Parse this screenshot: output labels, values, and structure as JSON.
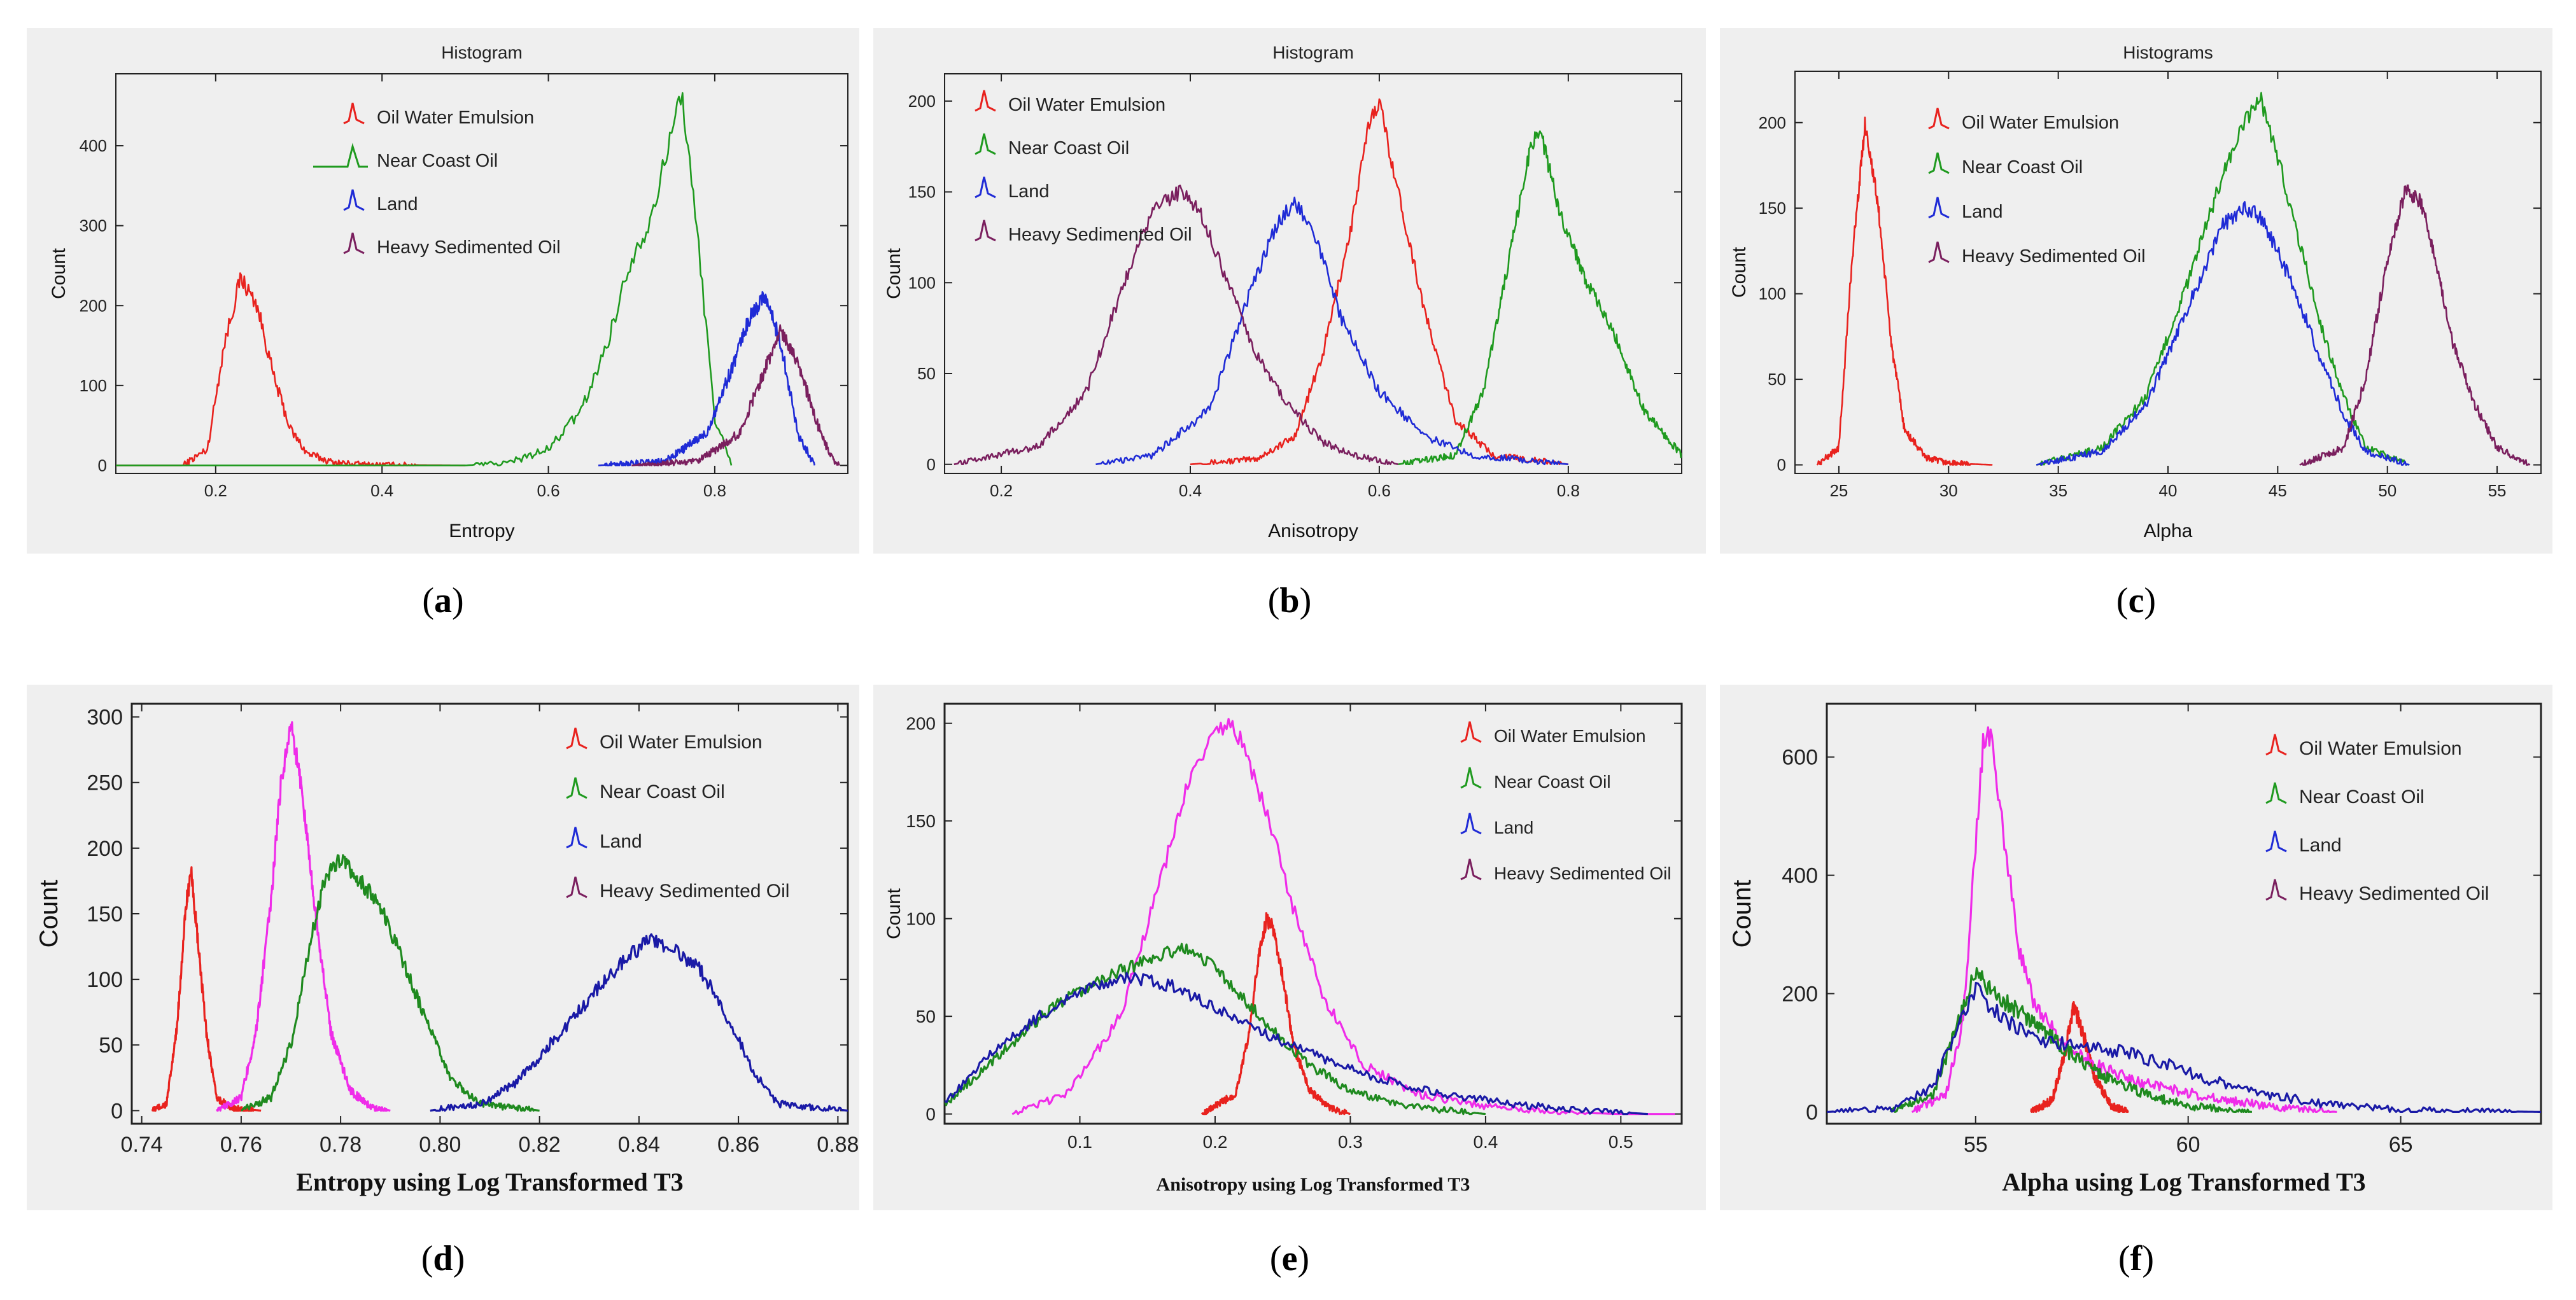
{
  "colors": {
    "oil_water": "#e8221e",
    "near_coast": "#1f9a1f",
    "land": "#1f2bd6",
    "heavy": "#7a1f5e",
    "magenta": "#ef2ce9",
    "darkblue": "#1a1aa6",
    "darkgreen": "#1f8a1f"
  },
  "legend_labels": [
    "Oil Water Emulsion",
    "Near Coast Oil",
    "Land",
    "Heavy Sedimented Oil"
  ],
  "chart_data": [
    {
      "id": "a",
      "type": "line",
      "sublabel": "a",
      "title": "Histogram",
      "xlabel": "Entropy",
      "ylabel": "Count",
      "xlim": [
        0.08,
        0.96
      ],
      "ylim": [
        -10,
        490
      ],
      "xticks": [
        0.2,
        0.4,
        0.6,
        0.8
      ],
      "xtick_labels": [
        "0.2",
        "0.4",
        "0.6",
        "0.8"
      ],
      "yticks": [
        0,
        100,
        200,
        300,
        400
      ],
      "ytick_labels": [
        "0",
        "100",
        "200",
        "300",
        "400"
      ],
      "series": [
        {
          "name": "Oil Water Emulsion",
          "color": "#e8221e",
          "x": [
            0.08,
            0.16,
            0.19,
            0.21,
            0.23,
            0.25,
            0.27,
            0.29,
            0.31,
            0.34,
            0.38,
            0.5
          ],
          "y": [
            0,
            0,
            20,
            150,
            235,
            200,
            110,
            45,
            15,
            4,
            1,
            0
          ]
        },
        {
          "name": "Near Coast Oil",
          "color": "#1f9a1f",
          "x": [
            0.08,
            0.5,
            0.55,
            0.6,
            0.64,
            0.67,
            0.7,
            0.72,
            0.74,
            0.76,
            0.78,
            0.8,
            0.82
          ],
          "y": [
            0,
            0,
            3,
            20,
            70,
            150,
            260,
            300,
            380,
            470,
            280,
            60,
            0
          ]
        },
        {
          "name": "Land",
          "color": "#1f2bd6",
          "x": [
            0.66,
            0.74,
            0.79,
            0.82,
            0.84,
            0.86,
            0.88,
            0.9,
            0.92
          ],
          "y": [
            0,
            5,
            40,
            120,
            180,
            215,
            150,
            40,
            0
          ]
        },
        {
          "name": "Heavy Sedimented Oil",
          "color": "#7a1f5e",
          "x": [
            0.7,
            0.78,
            0.83,
            0.86,
            0.88,
            0.9,
            0.92,
            0.94,
            0.95
          ],
          "y": [
            0,
            5,
            40,
            120,
            170,
            130,
            60,
            10,
            0
          ]
        }
      ]
    },
    {
      "id": "b",
      "type": "line",
      "sublabel": "b",
      "title": "Histogram",
      "xlabel": "Anisotropy",
      "ylabel": "Count",
      "xlim": [
        0.14,
        0.92
      ],
      "ylim": [
        -5,
        215
      ],
      "xticks": [
        0.2,
        0.4,
        0.6,
        0.8
      ],
      "xtick_labels": [
        "0.2",
        "0.4",
        "0.6",
        "0.8"
      ],
      "yticks": [
        0,
        50,
        100,
        150,
        200
      ],
      "ytick_labels": [
        "0",
        "50",
        "100",
        "150",
        "200"
      ],
      "series": [
        {
          "name": "Oil Water Emulsion",
          "color": "#e8221e",
          "x": [
            0.4,
            0.47,
            0.51,
            0.54,
            0.57,
            0.59,
            0.6,
            0.62,
            0.65,
            0.68,
            0.72,
            0.8
          ],
          "y": [
            0,
            3,
            15,
            60,
            130,
            190,
            200,
            150,
            80,
            25,
            5,
            0
          ]
        },
        {
          "name": "Near Coast Oil",
          "color": "#1f9a1f",
          "x": [
            0.62,
            0.68,
            0.71,
            0.74,
            0.76,
            0.77,
            0.79,
            0.82,
            0.85,
            0.88,
            0.92
          ],
          "y": [
            0,
            5,
            40,
            120,
            175,
            185,
            140,
            100,
            70,
            30,
            5
          ]
        },
        {
          "name": "Land",
          "color": "#1f2bd6",
          "x": [
            0.3,
            0.36,
            0.42,
            0.46,
            0.49,
            0.51,
            0.53,
            0.56,
            0.6,
            0.65,
            0.7,
            0.8
          ],
          "y": [
            0,
            5,
            30,
            90,
            130,
            145,
            130,
            80,
            40,
            15,
            5,
            0
          ]
        },
        {
          "name": "Heavy Sedimented Oil",
          "color": "#7a1f5e",
          "x": [
            0.15,
            0.24,
            0.29,
            0.33,
            0.36,
            0.39,
            0.41,
            0.44,
            0.47,
            0.5,
            0.54,
            0.58,
            0.62
          ],
          "y": [
            0,
            10,
            40,
            100,
            140,
            150,
            140,
            100,
            60,
            35,
            12,
            4,
            0
          ]
        }
      ]
    },
    {
      "id": "c",
      "type": "line",
      "sublabel": "c",
      "title": "Histograms",
      "xlabel": "Alpha",
      "ylabel": "Count",
      "xlim": [
        23,
        57
      ],
      "ylim": [
        -5,
        230
      ],
      "xticks": [
        25,
        30,
        35,
        40,
        45,
        50,
        55
      ],
      "xtick_labels": [
        "25",
        "30",
        "35",
        "40",
        "45",
        "50",
        "55"
      ],
      "yticks": [
        0,
        50,
        100,
        150,
        200
      ],
      "ytick_labels": [
        "0",
        "50",
        "100",
        "150",
        "200"
      ],
      "series": [
        {
          "name": "Oil Water Emulsion",
          "color": "#e8221e",
          "x": [
            24,
            25,
            25.6,
            26.2,
            26.8,
            27.4,
            28,
            29,
            30,
            32
          ],
          "y": [
            0,
            10,
            120,
            200,
            150,
            70,
            20,
            4,
            1,
            0
          ]
        },
        {
          "name": "Near Coast Oil",
          "color": "#1f9a1f",
          "x": [
            34,
            37,
            39,
            41,
            42.5,
            43.5,
            44.2,
            45,
            46,
            47,
            48,
            49,
            51
          ],
          "y": [
            0,
            10,
            40,
            110,
            170,
            200,
            215,
            180,
            130,
            80,
            40,
            10,
            0
          ]
        },
        {
          "name": "Land",
          "color": "#1f2bd6",
          "x": [
            34,
            37,
            39,
            41,
            42.5,
            43.5,
            44.2,
            45,
            46,
            47,
            48,
            49,
            51
          ],
          "y": [
            0,
            8,
            35,
            95,
            140,
            150,
            145,
            125,
            95,
            60,
            30,
            8,
            0
          ]
        },
        {
          "name": "Heavy Sedimented Oil",
          "color": "#7a1f5e",
          "x": [
            46,
            48,
            49,
            50,
            50.8,
            51.5,
            52.2,
            53,
            54,
            55,
            56.5
          ],
          "y": [
            0,
            10,
            50,
            120,
            160,
            155,
            120,
            70,
            35,
            10,
            0
          ]
        }
      ]
    },
    {
      "id": "d",
      "type": "line",
      "sublabel": "d",
      "title": "",
      "xlabel": "Entropy using Log Transformed T3",
      "ylabel": "Count",
      "xlim": [
        0.738,
        0.882
      ],
      "ylim": [
        -10,
        310
      ],
      "xticks": [
        0.74,
        0.76,
        0.78,
        0.8,
        0.82,
        0.84,
        0.86,
        0.88
      ],
      "xtick_labels": [
        "0.74",
        "0.76",
        "0.78",
        "0.80",
        "0.82",
        "0.84",
        "0.86",
        "0.88"
      ],
      "yticks": [
        0,
        50,
        100,
        150,
        200,
        250,
        300
      ],
      "ytick_labels": [
        "0",
        "50",
        "100",
        "150",
        "200",
        "250",
        "300"
      ],
      "series": [
        {
          "name": "",
          "color": "#e8221e",
          "x": [
            0.742,
            0.745,
            0.747,
            0.749,
            0.75,
            0.751,
            0.753,
            0.755,
            0.758,
            0.764
          ],
          "y": [
            0,
            5,
            60,
            160,
            180,
            140,
            60,
            10,
            2,
            0
          ]
        },
        {
          "name": "",
          "color": "#ef2ce9",
          "x": [
            0.755,
            0.76,
            0.763,
            0.766,
            0.768,
            0.77,
            0.772,
            0.775,
            0.778,
            0.782,
            0.786,
            0.79
          ],
          "y": [
            0,
            10,
            60,
            160,
            250,
            295,
            250,
            150,
            60,
            15,
            3,
            0
          ]
        },
        {
          "name": "",
          "color": "#1f8a1f",
          "x": [
            0.76,
            0.766,
            0.77,
            0.774,
            0.777,
            0.78,
            0.784,
            0.788,
            0.793,
            0.797,
            0.802,
            0.808,
            0.82
          ],
          "y": [
            0,
            10,
            50,
            130,
            180,
            190,
            175,
            155,
            110,
            70,
            25,
            5,
            0
          ]
        },
        {
          "name": "",
          "color": "#1a1aa6",
          "x": [
            0.798,
            0.808,
            0.815,
            0.822,
            0.83,
            0.837,
            0.842,
            0.846,
            0.852,
            0.858,
            0.863,
            0.868,
            0.882
          ],
          "y": [
            0,
            5,
            20,
            50,
            85,
            115,
            130,
            125,
            110,
            70,
            30,
            5,
            0
          ]
        }
      ]
    },
    {
      "id": "e",
      "type": "line",
      "sublabel": "e",
      "title": "",
      "xlabel": "Anisotropy using Log Transformed T3",
      "ylabel": "Count",
      "xlim": [
        0,
        0.545
      ],
      "ylim": [
        -5,
        210
      ],
      "xticks": [
        0.1,
        0.2,
        0.3,
        0.4,
        0.5
      ],
      "xtick_labels": [
        "0.1",
        "0.2",
        "0.3",
        "0.4",
        "0.5"
      ],
      "yticks": [
        0,
        50,
        100,
        150,
        200
      ],
      "ytick_labels": [
        "0",
        "50",
        "100",
        "150",
        "200"
      ],
      "series": [
        {
          "name": "",
          "color": "#e8221e",
          "x": [
            0.19,
            0.215,
            0.225,
            0.232,
            0.238,
            0.243,
            0.25,
            0.258,
            0.27,
            0.285,
            0.3
          ],
          "y": [
            0,
            10,
            40,
            80,
            100,
            95,
            70,
            35,
            12,
            3,
            0
          ]
        },
        {
          "name": "",
          "color": "#ef2ce9",
          "x": [
            0.05,
            0.09,
            0.13,
            0.16,
            0.18,
            0.2,
            0.21,
            0.22,
            0.24,
            0.26,
            0.28,
            0.31,
            0.35,
            0.4,
            0.45,
            0.5,
            0.54
          ],
          "y": [
            0,
            10,
            50,
            120,
            170,
            195,
            200,
            190,
            150,
            100,
            60,
            25,
            10,
            4,
            1,
            0,
            0
          ]
        },
        {
          "name": "",
          "color": "#1f8a1f",
          "x": [
            0,
            0.04,
            0.08,
            0.12,
            0.16,
            0.18,
            0.2,
            0.22,
            0.24,
            0.27,
            0.3,
            0.34,
            0.4
          ],
          "y": [
            5,
            30,
            55,
            70,
            82,
            85,
            75,
            60,
            45,
            25,
            12,
            4,
            0
          ]
        },
        {
          "name": "",
          "color": "#1a1aa6",
          "x": [
            0,
            0.04,
            0.08,
            0.11,
            0.14,
            0.17,
            0.2,
            0.24,
            0.28,
            0.32,
            0.37,
            0.42,
            0.47,
            0.52
          ],
          "y": [
            5,
            35,
            55,
            65,
            70,
            65,
            55,
            40,
            28,
            18,
            10,
            5,
            2,
            0
          ]
        }
      ]
    },
    {
      "id": "f",
      "type": "line",
      "sublabel": "f",
      "title": "",
      "xlabel": "Alpha using Log Transformed T3",
      "ylabel": "Count",
      "xlim": [
        51.5,
        68.3
      ],
      "ylim": [
        -20,
        690
      ],
      "xticks": [
        55,
        60,
        65
      ],
      "xtick_labels": [
        "55",
        "60",
        "65"
      ],
      "yticks": [
        0,
        200,
        400,
        600
      ],
      "ytick_labels": [
        "0",
        "200",
        "400",
        "600"
      ],
      "series": [
        {
          "name": "",
          "color": "#e8221e",
          "x": [
            56.3,
            56.8,
            57.1,
            57.3,
            57.5,
            57.8,
            58.2,
            58.6
          ],
          "y": [
            0,
            20,
            100,
            180,
            140,
            60,
            10,
            0
          ]
        },
        {
          "name": "",
          "color": "#ef2ce9",
          "x": [
            53.5,
            54.3,
            54.7,
            55,
            55.2,
            55.4,
            55.7,
            56,
            56.4,
            57,
            57.8,
            58.8,
            60.5,
            62,
            63.5
          ],
          "y": [
            0,
            30,
            150,
            450,
            640,
            620,
            450,
            280,
            180,
            120,
            80,
            50,
            25,
            8,
            0
          ]
        },
        {
          "name": "",
          "color": "#1f8a1f",
          "x": [
            53,
            54,
            54.6,
            55,
            55.3,
            55.8,
            56.4,
            57.2,
            58,
            59,
            60,
            61.5
          ],
          "y": [
            0,
            30,
            150,
            240,
            210,
            180,
            150,
            100,
            60,
            30,
            10,
            0
          ]
        },
        {
          "name": "",
          "color": "#1a1aa6",
          "x": [
            51.5,
            53,
            54,
            54.6,
            55,
            55.3,
            55.8,
            56.5,
            57.5,
            58.5,
            59.5,
            60.5,
            61.5,
            63,
            65,
            68.3
          ],
          "y": [
            0,
            5,
            40,
            150,
            210,
            180,
            150,
            120,
            110,
            100,
            80,
            55,
            35,
            15,
            3,
            0
          ]
        }
      ]
    }
  ]
}
